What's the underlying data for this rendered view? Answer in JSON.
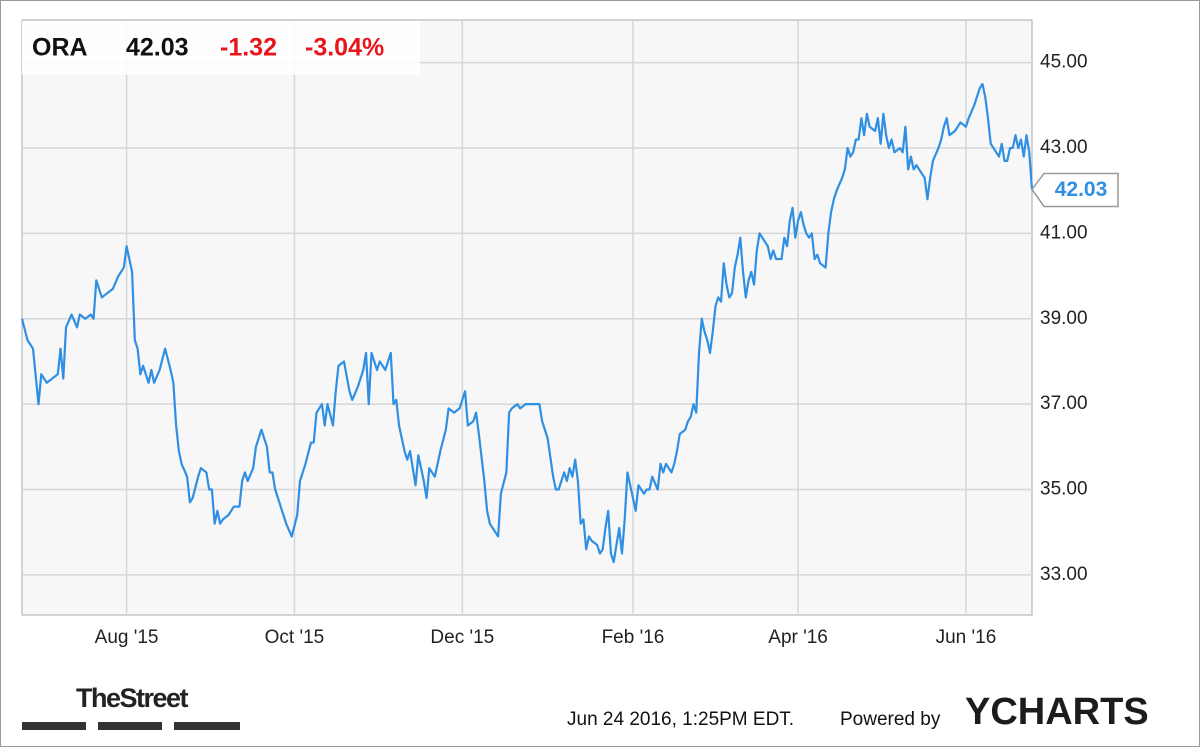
{
  "header": {
    "ticker": "ORA",
    "price": "42.03",
    "change": "-1.32",
    "change_pct": "-3.04%"
  },
  "footer": {
    "timestamp": "Jun 24 2016, 1:25PM EDT.",
    "powered": "Powered by",
    "brand": "YCHARTS",
    "logo": "TheStreet"
  },
  "chart_data": {
    "type": "line",
    "x": [
      0,
      2,
      4,
      6,
      7,
      9,
      11,
      13,
      14,
      15,
      16,
      18,
      20,
      21,
      23,
      25,
      26,
      27,
      29,
      31,
      33,
      35,
      37,
      38,
      40,
      41,
      42,
      43,
      44,
      46,
      47,
      48,
      50,
      52,
      54,
      55,
      56,
      57,
      58,
      60,
      61,
      62,
      64,
      65,
      67,
      68,
      69,
      70,
      71,
      72,
      73,
      75,
      77,
      79,
      80,
      81,
      82,
      84,
      85,
      87,
      89,
      90,
      91,
      92,
      94,
      96,
      98,
      100,
      101,
      103,
      105,
      106,
      107,
      109,
      110,
      111,
      113,
      114,
      115,
      117,
      119,
      120,
      122,
      124,
      125,
      126,
      127,
      129,
      130,
      132,
      134,
      135,
      136,
      137,
      139,
      140,
      141,
      143,
      144,
      145,
      146,
      147,
      148,
      150,
      152,
      154,
      155,
      157,
      159,
      161,
      162,
      164,
      165,
      166,
      168,
      169,
      170,
      172,
      173,
      174,
      176,
      177,
      178,
      180,
      181,
      183,
      185,
      187,
      188,
      189,
      190,
      191,
      193,
      194,
      195,
      197,
      198,
      199,
      200,
      201,
      202,
      203,
      204,
      205,
      206,
      207,
      209,
      210,
      211,
      212,
      213,
      214,
      215,
      216,
      217,
      218,
      219,
      220,
      222,
      223,
      224,
      226,
      227,
      228,
      229,
      231,
      232,
      233,
      234,
      236,
      237,
      238,
      239,
      241,
      242,
      243,
      244,
      245,
      246,
      247,
      248,
      249,
      250,
      251,
      252,
      253,
      254,
      255,
      256,
      257,
      258,
      259,
      260,
      261,
      262,
      263,
      264,
      265,
      266,
      267,
      268,
      270,
      271,
      272,
      273,
      274,
      275,
      276,
      277,
      278,
      279,
      280,
      281,
      282,
      283,
      284,
      285,
      286,
      287,
      288,
      289,
      290,
      292,
      293,
      294,
      295,
      296,
      298,
      299,
      300,
      301,
      302,
      303,
      304,
      305,
      306,
      307,
      308,
      310,
      311,
      312,
      313,
      314,
      315,
      316,
      317,
      319,
      320,
      321,
      322,
      323,
      324,
      325,
      327,
      328,
      329,
      330,
      331,
      333,
      334,
      335,
      336,
      337,
      339,
      341,
      343,
      344,
      346,
      347,
      348,
      349,
      350,
      351,
      352,
      353,
      354,
      355,
      356,
      357,
      358,
      359,
      360,
      361,
      362,
      363,
      364,
      365,
      366,
      367
    ],
    "series": [
      {
        "name": "ORA",
        "color": "#2f8fe3",
        "values": [
          39.0,
          38.5,
          38.3,
          37.0,
          37.7,
          37.5,
          37.6,
          37.7,
          38.3,
          37.6,
          38.8,
          39.1,
          38.8,
          39.1,
          39.0,
          39.1,
          39.0,
          39.9,
          39.5,
          39.6,
          39.7,
          40.0,
          40.2,
          40.7,
          40.1,
          38.5,
          38.3,
          37.7,
          37.9,
          37.5,
          37.8,
          37.5,
          37.8,
          38.3,
          37.8,
          37.5,
          36.5,
          35.9,
          35.6,
          35.3,
          34.7,
          34.8,
          35.3,
          35.5,
          35.4,
          35.0,
          35.0,
          34.2,
          34.5,
          34.2,
          34.3,
          34.4,
          34.6,
          34.6,
          35.2,
          35.4,
          35.2,
          35.5,
          36.0,
          36.4,
          36.0,
          35.4,
          35.4,
          35.0,
          34.6,
          34.2,
          33.9,
          34.4,
          35.2,
          35.6,
          36.1,
          36.1,
          36.8,
          37.0,
          36.5,
          37.0,
          36.5,
          37.3,
          37.9,
          38.0,
          37.3,
          37.1,
          37.4,
          37.8,
          38.2,
          37.0,
          38.2,
          37.8,
          38.0,
          37.8,
          38.2,
          37.0,
          37.1,
          36.5,
          35.9,
          35.7,
          35.9,
          35.1,
          35.8,
          35.5,
          35.2,
          34.8,
          35.5,
          35.3,
          35.9,
          36.4,
          36.9,
          36.8,
          36.9,
          37.3,
          36.5,
          36.6,
          36.8,
          36.3,
          35.2,
          34.5,
          34.2,
          34.0,
          33.9,
          34.9,
          35.4,
          36.8,
          36.9,
          37.0,
          36.9,
          37.0,
          37.0,
          37.0,
          37.0,
          36.6,
          36.4,
          36.2,
          35.3,
          35.0,
          35.0,
          35.4,
          35.2,
          35.5,
          35.3,
          35.7,
          35.2,
          34.2,
          34.3,
          33.6,
          33.9,
          33.8,
          33.7,
          33.5,
          33.6,
          34.1,
          34.5,
          33.5,
          33.3,
          33.7,
          34.1,
          33.5,
          34.3,
          35.4,
          34.8,
          34.5,
          35.1,
          34.9,
          35.0,
          35.0,
          35.3,
          35.0,
          35.6,
          35.4,
          35.6,
          35.4,
          35.6,
          35.9,
          36.3,
          36.4,
          36.6,
          36.7,
          37.0,
          36.8,
          38.2,
          39.0,
          38.7,
          38.5,
          38.2,
          38.7,
          39.3,
          39.5,
          39.4,
          40.3,
          39.8,
          39.5,
          39.6,
          40.2,
          40.5,
          40.9,
          40.1,
          39.5,
          39.9,
          40.1,
          39.8,
          40.6,
          41.0,
          40.8,
          40.7,
          40.4,
          40.6,
          40.4,
          40.4,
          40.4,
          40.9,
          40.7,
          41.3,
          41.6,
          40.9,
          41.3,
          41.5,
          41.2,
          41.0,
          40.9,
          41.0,
          40.4,
          40.5,
          40.3,
          40.2,
          41.0,
          41.5,
          41.8,
          42.0,
          42.3,
          42.5,
          43.0,
          42.8,
          42.9,
          43.2,
          43.2,
          43.7,
          43.3,
          43.8,
          43.5,
          43.4,
          43.7,
          43.1,
          43.8,
          43.3,
          43.0,
          43.2,
          42.9,
          43.0,
          42.9,
          43.5,
          42.5,
          42.8,
          42.5,
          42.6,
          42.4,
          42.3,
          41.8,
          42.3,
          42.7,
          43.0,
          43.2,
          43.5,
          43.7,
          43.3,
          43.4,
          43.6,
          43.5,
          43.7,
          44.0,
          44.2,
          44.4,
          44.5,
          44.2,
          43.7,
          43.1,
          43.0,
          42.9,
          42.8,
          43.1,
          42.7,
          42.7,
          43.0,
          43.0,
          43.3,
          43.0,
          43.2,
          42.8,
          43.3,
          42.9,
          42.03
        ]
      }
    ],
    "xlim": [
      0,
      367
    ],
    "xticks": [
      {
        "value": 38,
        "label": "Aug '15"
      },
      {
        "value": 99,
        "label": "Oct '15"
      },
      {
        "value": 160,
        "label": "Dec '15"
      },
      {
        "value": 222,
        "label": "Feb '16"
      },
      {
        "value": 282,
        "label": "Apr '16"
      },
      {
        "value": 343,
        "label": "Jun '16"
      }
    ],
    "ylim": [
      32.06,
      46.0
    ],
    "yticks": [
      {
        "value": 33,
        "label": "33.00"
      },
      {
        "value": 35,
        "label": "35.00"
      },
      {
        "value": 37,
        "label": "37.00"
      },
      {
        "value": 39,
        "label": "39.00"
      },
      {
        "value": 41,
        "label": "41.00"
      },
      {
        "value": 43,
        "label": "43.00"
      },
      {
        "value": 45,
        "label": "45.00"
      }
    ],
    "grid": true
  }
}
